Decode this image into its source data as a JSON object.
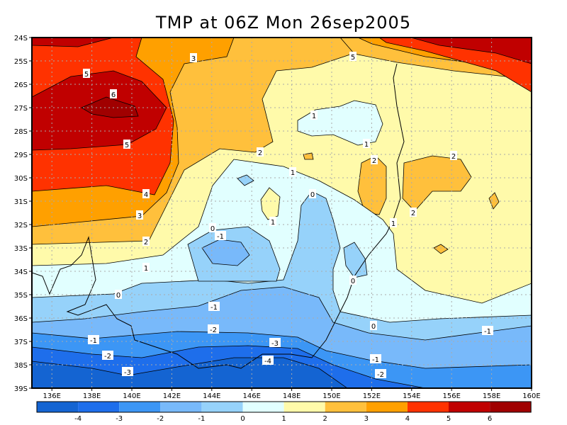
{
  "title": "TMP at 06Z Mon 26sep2005",
  "lat_labels": [
    "24S",
    "25S",
    "26S",
    "27S",
    "28S",
    "29S",
    "30S",
    "31S",
    "32S",
    "33S",
    "34S",
    "35S",
    "36S",
    "37S",
    "38S",
    "39S"
  ],
  "lon_labels": [
    "136E",
    "138E",
    "140E",
    "142E",
    "144E",
    "146E",
    "148E",
    "150E",
    "152E",
    "154E",
    "156E",
    "158E",
    "160E"
  ],
  "colorbar": {
    "labels": [
      "-4",
      "-3",
      "-2",
      "-1",
      "0",
      "1",
      "2",
      "3",
      "4",
      "5",
      "6"
    ],
    "colors": [
      "#1464d2",
      "#1e6eeb",
      "#3c96f5",
      "#78b9fa",
      "#96d2fa",
      "#e1ffff",
      "#fffaaa",
      "#ffc03c",
      "#ffa000",
      "#ff3200",
      "#c00000",
      "#a00000"
    ]
  },
  "contour_labels": [
    "5",
    "6",
    "5",
    "4",
    "3",
    "2",
    "1",
    "3",
    "2",
    "5",
    "1",
    "1",
    "2",
    "2",
    "2",
    "1",
    "1",
    "0",
    "0",
    "-1",
    "0",
    "1",
    "0",
    "-1",
    "-1",
    "-2",
    "-1",
    "-2",
    "-3",
    "-3",
    "-4",
    "0",
    "-1",
    "-2"
  ]
}
